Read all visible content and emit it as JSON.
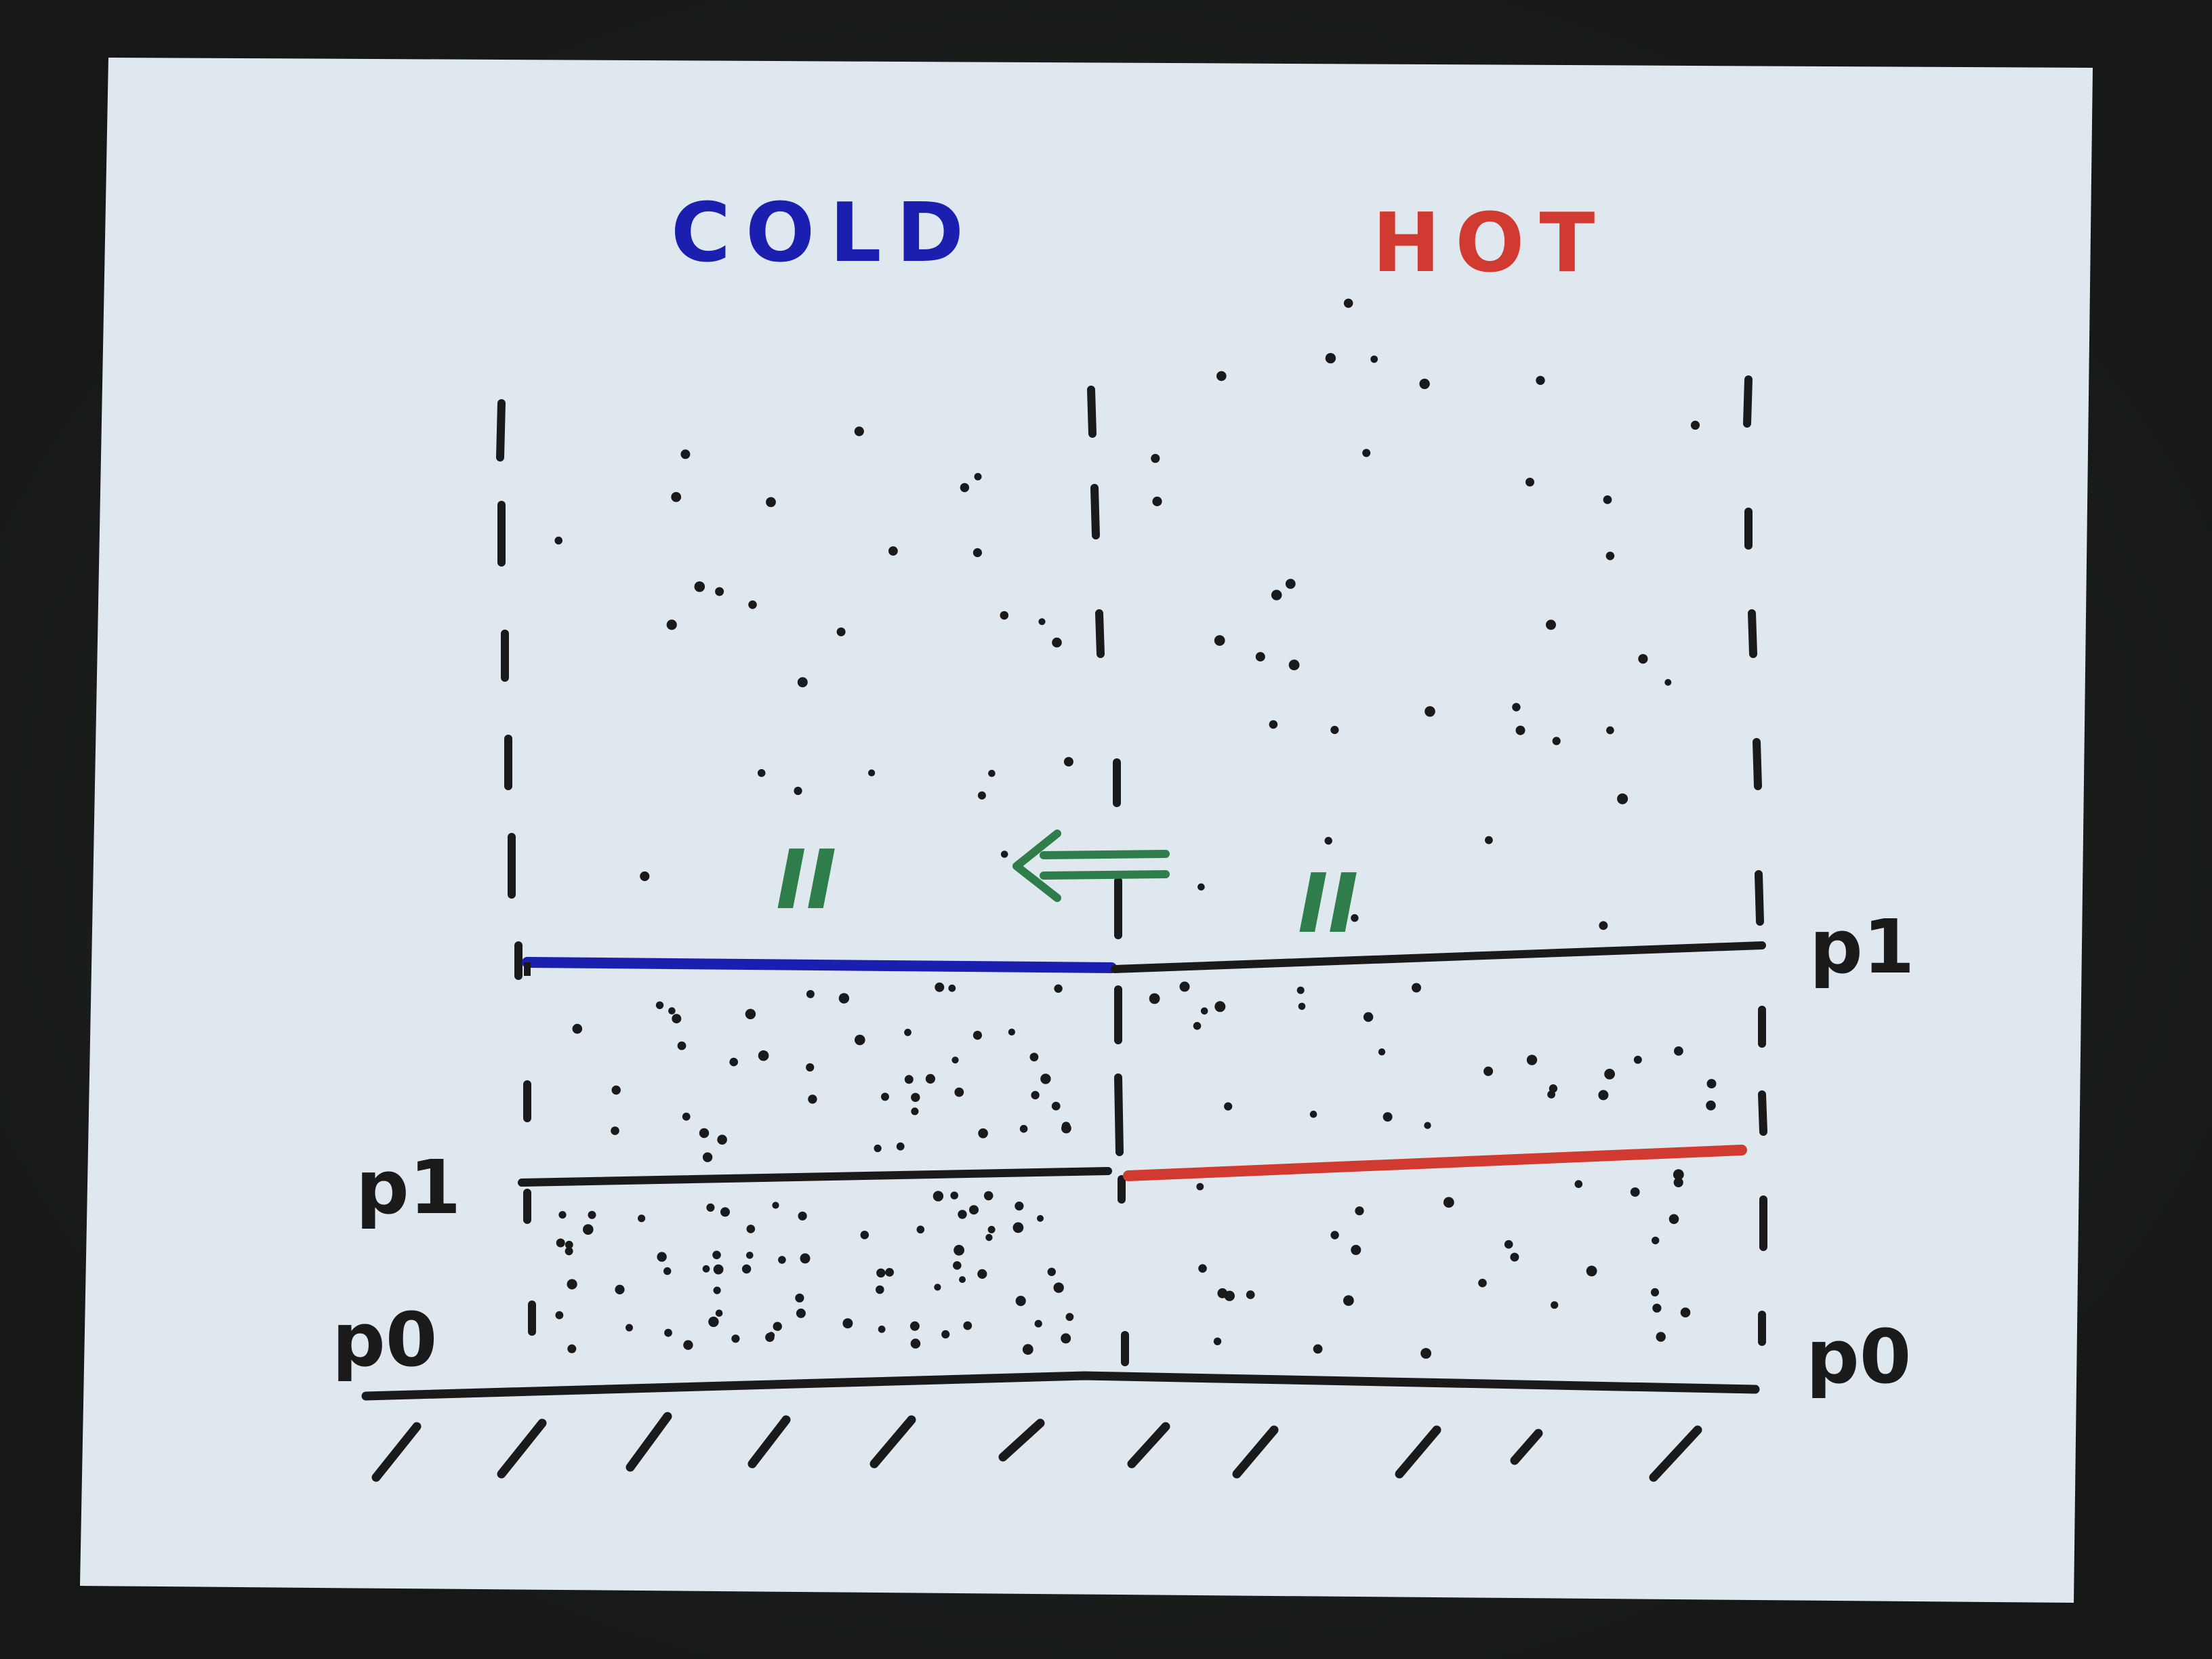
{
  "diagram": {
    "labels": {
      "cold": "COLD",
      "hot": "HOT",
      "left_pressure_label": "p1",
      "right_pressure_label": "p1",
      "left_ground_pressure_label": "p0",
      "right_ground_pressure_label": "p0",
      "left_roman_label": "II",
      "right_roman_label": "II"
    },
    "colors": {
      "paper": "#dfe8ef",
      "ink_black": "#1a1a1a",
      "ink_blue": "#1a1fb0",
      "ink_red": "#d03a30",
      "ink_green": "#2e7d4a"
    },
    "icons": {
      "flow_arrow": "left-double-arrow-icon",
      "ground": "ground-hatching-icon"
    }
  }
}
